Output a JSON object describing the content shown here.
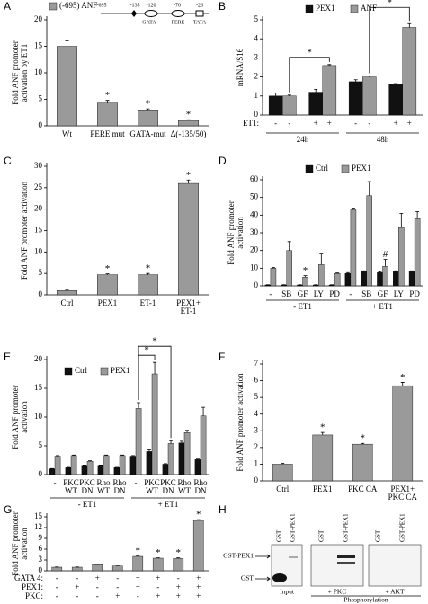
{
  "chart_data": [
    {
      "type": "bar",
      "panel": "A",
      "ylabel": [
        "Fold ANF promoter",
        "activation by ET1"
      ],
      "ylim": [
        0,
        20
      ],
      "yticks": [
        0,
        5,
        10,
        15,
        20
      ],
      "categories": [
        "Wt",
        "PERE mut",
        "GATA-mut",
        "Δ(-135/50)"
      ],
      "series": [
        {
          "name": "(-695) ANF",
          "color": "#9a9a9a",
          "values": [
            15,
            4.3,
            3.0,
            1.0
          ],
          "errors": [
            1.0,
            0.5,
            0.2,
            0.15
          ]
        }
      ],
      "stars": [
        {
          "text": "*",
          "series": 0,
          "index": 1
        },
        {
          "text": "*",
          "series": 0,
          "index": 2
        },
        {
          "text": "*",
          "series": 0,
          "index": 3
        }
      ],
      "diagram": {
        "positions": [
          "-695",
          "-135",
          "-120",
          "-70",
          "-26"
        ],
        "elements": [
          "GATA",
          "PERE",
          "TATA"
        ]
      }
    },
    {
      "type": "bar",
      "panel": "B",
      "ylabel": [
        "mRNA/S16"
      ],
      "ylim": [
        0,
        5
      ],
      "yticks": [
        0,
        1,
        2,
        3,
        4,
        5
      ],
      "categories": [
        "-",
        "+",
        "-",
        "+"
      ],
      "label_each_bar": true,
      "row_label": "ET1:",
      "groups": [
        "24h",
        "48h"
      ],
      "series": [
        {
          "name": "PEX1",
          "color": "#111111",
          "values": [
            1.0,
            1.2,
            1.75,
            1.6
          ],
          "errors": [
            0.15,
            0.15,
            0.1,
            0.05
          ]
        },
        {
          "name": "ANF",
          "color": "#9a9a9a",
          "values": [
            1.0,
            2.6,
            2.0,
            4.6
          ],
          "errors": [
            0.05,
            0.05,
            0.05,
            0.2
          ]
        }
      ],
      "brackets": [
        {
          "text": "*",
          "series": 1,
          "from": 0,
          "to": 1
        },
        {
          "text": "*",
          "series": 1,
          "from": 2,
          "to": 3
        }
      ]
    },
    {
      "type": "bar",
      "panel": "C",
      "ylabel": [
        "Fold ANF promoter activation"
      ],
      "ylim": [
        0,
        30
      ],
      "yticks": [
        0,
        5,
        10,
        15,
        20,
        25,
        30
      ],
      "categories": [
        "Ctrl",
        "PEX1",
        "ET-1",
        [
          "PEX1+",
          "ET-1"
        ]
      ],
      "series": [
        {
          "color": "#9a9a9a",
          "values": [
            1,
            4.7,
            4.7,
            26
          ],
          "errors": [
            0.1,
            0.2,
            0.3,
            0.8
          ]
        }
      ],
      "stars": [
        {
          "text": "*",
          "series": 0,
          "index": 1
        },
        {
          "text": "*",
          "series": 0,
          "index": 2
        },
        {
          "text": "*",
          "series": 0,
          "index": 3
        }
      ]
    },
    {
      "type": "bar",
      "panel": "D",
      "ylabel": [
        "Fold ANF promoter",
        "activation"
      ],
      "ylim": [
        0,
        60
      ],
      "yticks": [
        0,
        10,
        20,
        30,
        40,
        50,
        60
      ],
      "categories": [
        "-",
        "SB",
        "GF",
        "LY",
        "PD",
        "-",
        "SB",
        "GF",
        "LY",
        "PD"
      ],
      "groups": [
        "- ET1",
        "+ ET1"
      ],
      "series": [
        {
          "name": "Ctrl",
          "color": "#111111",
          "values": [
            0.5,
            0.5,
            0.5,
            0.5,
            0.5,
            7,
            8,
            7.5,
            8,
            8
          ],
          "errors": [
            0.1,
            0.1,
            0.1,
            0.1,
            0.1,
            0.5,
            0.5,
            0.5,
            0.5,
            0.5
          ]
        },
        {
          "name": "PEX1",
          "color": "#9a9a9a",
          "values": [
            10,
            20,
            5,
            12,
            7,
            43,
            51,
            11,
            33,
            38
          ],
          "errors": [
            0.5,
            5,
            0.8,
            6,
            0.3,
            1,
            8,
            4,
            8,
            4
          ]
        }
      ],
      "stars": [
        {
          "text": "*",
          "series": 1,
          "index": 2
        },
        {
          "text": "#",
          "series": 1,
          "index": 7
        }
      ]
    },
    {
      "type": "bar",
      "panel": "E",
      "ylabel": [
        "Fold ANF promoter",
        "activation"
      ],
      "ylim": [
        0,
        20
      ],
      "yticks": [
        0,
        5,
        10,
        15,
        20
      ],
      "categories": [
        "-",
        [
          "PKC",
          "WT"
        ],
        [
          "PKC",
          "DN"
        ],
        [
          "Rho",
          "WT"
        ],
        [
          "Rho",
          "DN"
        ],
        "-",
        [
          "PKC",
          "WT"
        ],
        [
          "PKC",
          "DN"
        ],
        [
          "Rho",
          "WT"
        ],
        [
          "Rho",
          "DN"
        ]
      ],
      "groups": [
        "- ET1",
        "+ ET1"
      ],
      "series": [
        {
          "name": "Ctrl",
          "color": "#111111",
          "values": [
            1,
            1.2,
            1.6,
            1.6,
            1.2,
            3.2,
            4,
            1.8,
            5.5,
            2.6
          ],
          "errors": [
            0.05,
            0.05,
            0.05,
            0.05,
            0.05,
            0.1,
            0.3,
            0.1,
            0.3,
            0.1
          ]
        },
        {
          "name": "PEX1",
          "color": "#9a9a9a",
          "values": [
            3.2,
            3.3,
            2.3,
            3.3,
            3.3,
            11.5,
            17.5,
            5.4,
            7.3,
            10.2
          ],
          "errors": [
            0.1,
            0.1,
            0.1,
            0.1,
            0.1,
            1,
            2,
            0.5,
            0.4,
            1.5
          ]
        }
      ],
      "brackets": [
        {
          "text": "*",
          "series": 1,
          "from": 5,
          "to": 6
        },
        {
          "text": "*",
          "series": 1,
          "from": 5,
          "to": 7
        }
      ]
    },
    {
      "type": "bar",
      "panel": "F",
      "ylabel": [
        "Fold ANF promoter activation"
      ],
      "ylim": [
        0,
        7
      ],
      "yticks": [
        0,
        1,
        2,
        3,
        4,
        5,
        6,
        7
      ],
      "categories": [
        "Ctrl",
        "PEX1",
        "PKC CA",
        [
          "PEX1+",
          "PKC CA"
        ]
      ],
      "series": [
        {
          "color": "#9a9a9a",
          "values": [
            1,
            2.75,
            2.2,
            5.7
          ],
          "errors": [
            0.05,
            0.15,
            0.05,
            0.2
          ]
        }
      ],
      "stars": [
        {
          "text": "*",
          "series": 0,
          "index": 1
        },
        {
          "text": "*",
          "series": 0,
          "index": 2
        },
        {
          "text": "*",
          "series": 0,
          "index": 3
        }
      ]
    },
    {
      "type": "bar",
      "panel": "G",
      "ylabel": [
        "Fold ANF promoter",
        "activation"
      ],
      "ylim": [
        0,
        15
      ],
      "yticks": [
        0,
        3,
        6,
        9,
        12,
        15
      ],
      "rows": [
        {
          "name": "GATA 4:",
          "values": [
            "-",
            "-",
            "+",
            "-",
            "+",
            "+",
            "-",
            "+"
          ]
        },
        {
          "name": "PEX1:",
          "values": [
            "-",
            "+",
            "-",
            "-",
            "+",
            "-",
            "+",
            "+"
          ]
        },
        {
          "name": "PKC:",
          "values": [
            "-",
            "-",
            "-",
            "+",
            "-",
            "+",
            "+",
            "+"
          ]
        }
      ],
      "series": [
        {
          "color": "#9a9a9a",
          "values": [
            1,
            1,
            1.7,
            1.3,
            4,
            3.5,
            3.4,
            14
          ],
          "errors": [
            0.05,
            0.05,
            0.05,
            0.05,
            0.1,
            0.1,
            0.2,
            0.2
          ]
        }
      ],
      "stars": [
        {
          "text": "*",
          "series": 0,
          "index": 4
        },
        {
          "text": "*",
          "series": 0,
          "index": 5
        },
        {
          "text": "*",
          "series": 0,
          "index": 6
        },
        {
          "text": "*",
          "series": 0,
          "index": 7
        }
      ]
    }
  ],
  "blot": {
    "panel": "H",
    "lanes": [
      "GST",
      "GST-PEX1",
      "GST",
      "GST-PEX1",
      "GST",
      "GST-PEX1"
    ],
    "bands": [
      "GST-PEX1",
      "GST"
    ],
    "panels": [
      "Input",
      "+ PKC",
      "+ AKT"
    ],
    "footer": "Phosphorylation"
  }
}
